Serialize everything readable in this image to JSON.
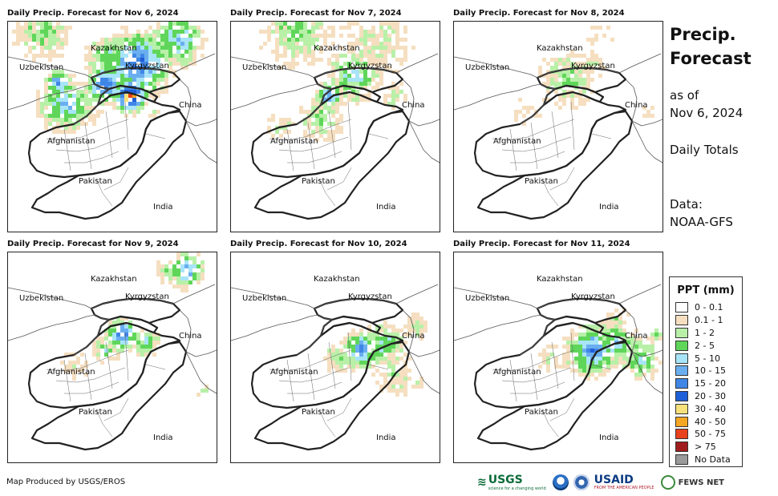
{
  "panels": [
    {
      "title": "Daily Precip. Forecast for Nov 6, 2024",
      "intensity": "heavy"
    },
    {
      "title": "Daily Precip. Forecast for Nov 7, 2024",
      "intensity": "moderate"
    },
    {
      "title": "Daily Precip. Forecast for Nov 8, 2024",
      "intensity": "light"
    },
    {
      "title": "Daily Precip. Forecast for Nov 9, 2024",
      "intensity": "moderate"
    },
    {
      "title": "Daily Precip. Forecast for Nov 10, 2024",
      "intensity": "moderate"
    },
    {
      "title": "Daily Precip. Forecast for Nov 11, 2024",
      "intensity": "moderate"
    }
  ],
  "map_labels": {
    "kazakhstan": "Kazakhstan",
    "uzbekistan": "Uzbekistan",
    "kyrgyzstan": "Kyrgyzstan",
    "china": "China",
    "afghanistan": "Afghanistan",
    "pakistan": "Pakistan",
    "india": "India"
  },
  "sidebar": {
    "title": "Precip. Forecast",
    "as_of_label": "as of",
    "date": "Nov 6, 2024",
    "totals": "Daily Totals",
    "data_label": "Data:",
    "data_source": "NOAA-GFS"
  },
  "legend": {
    "title": "PPT (mm)",
    "items": [
      {
        "label": "0 - 0.1",
        "color": "#ffffff"
      },
      {
        "label": "0.1 - 1",
        "color": "#f5dfc0"
      },
      {
        "label": "1 - 2",
        "color": "#b8f0a8"
      },
      {
        "label": "2 - 5",
        "color": "#5fd65a"
      },
      {
        "label": "5 - 10",
        "color": "#a8e4f8"
      },
      {
        "label": "10 - 15",
        "color": "#6aaef0"
      },
      {
        "label": "15 - 20",
        "color": "#3f86e6"
      },
      {
        "label": "20 - 30",
        "color": "#1f5fd8"
      },
      {
        "label": "30 - 40",
        "color": "#f8e07a"
      },
      {
        "label": "40 - 50",
        "color": "#f5a623"
      },
      {
        "label": "50 - 75",
        "color": "#e8421c"
      },
      {
        "label": "> 75",
        "color": "#a01c1c"
      },
      {
        "label": "No Data",
        "color": "#9a9a9a"
      }
    ]
  },
  "footer": {
    "credit": "Map Produced by USGS/EROS",
    "logos": {
      "usgs": "USGS",
      "usgs_tag": "science for a changing world",
      "usaid": "USAID",
      "usaid_tag": "FROM THE AMERICAN PEOPLE",
      "fews": "FEWS NET"
    }
  }
}
